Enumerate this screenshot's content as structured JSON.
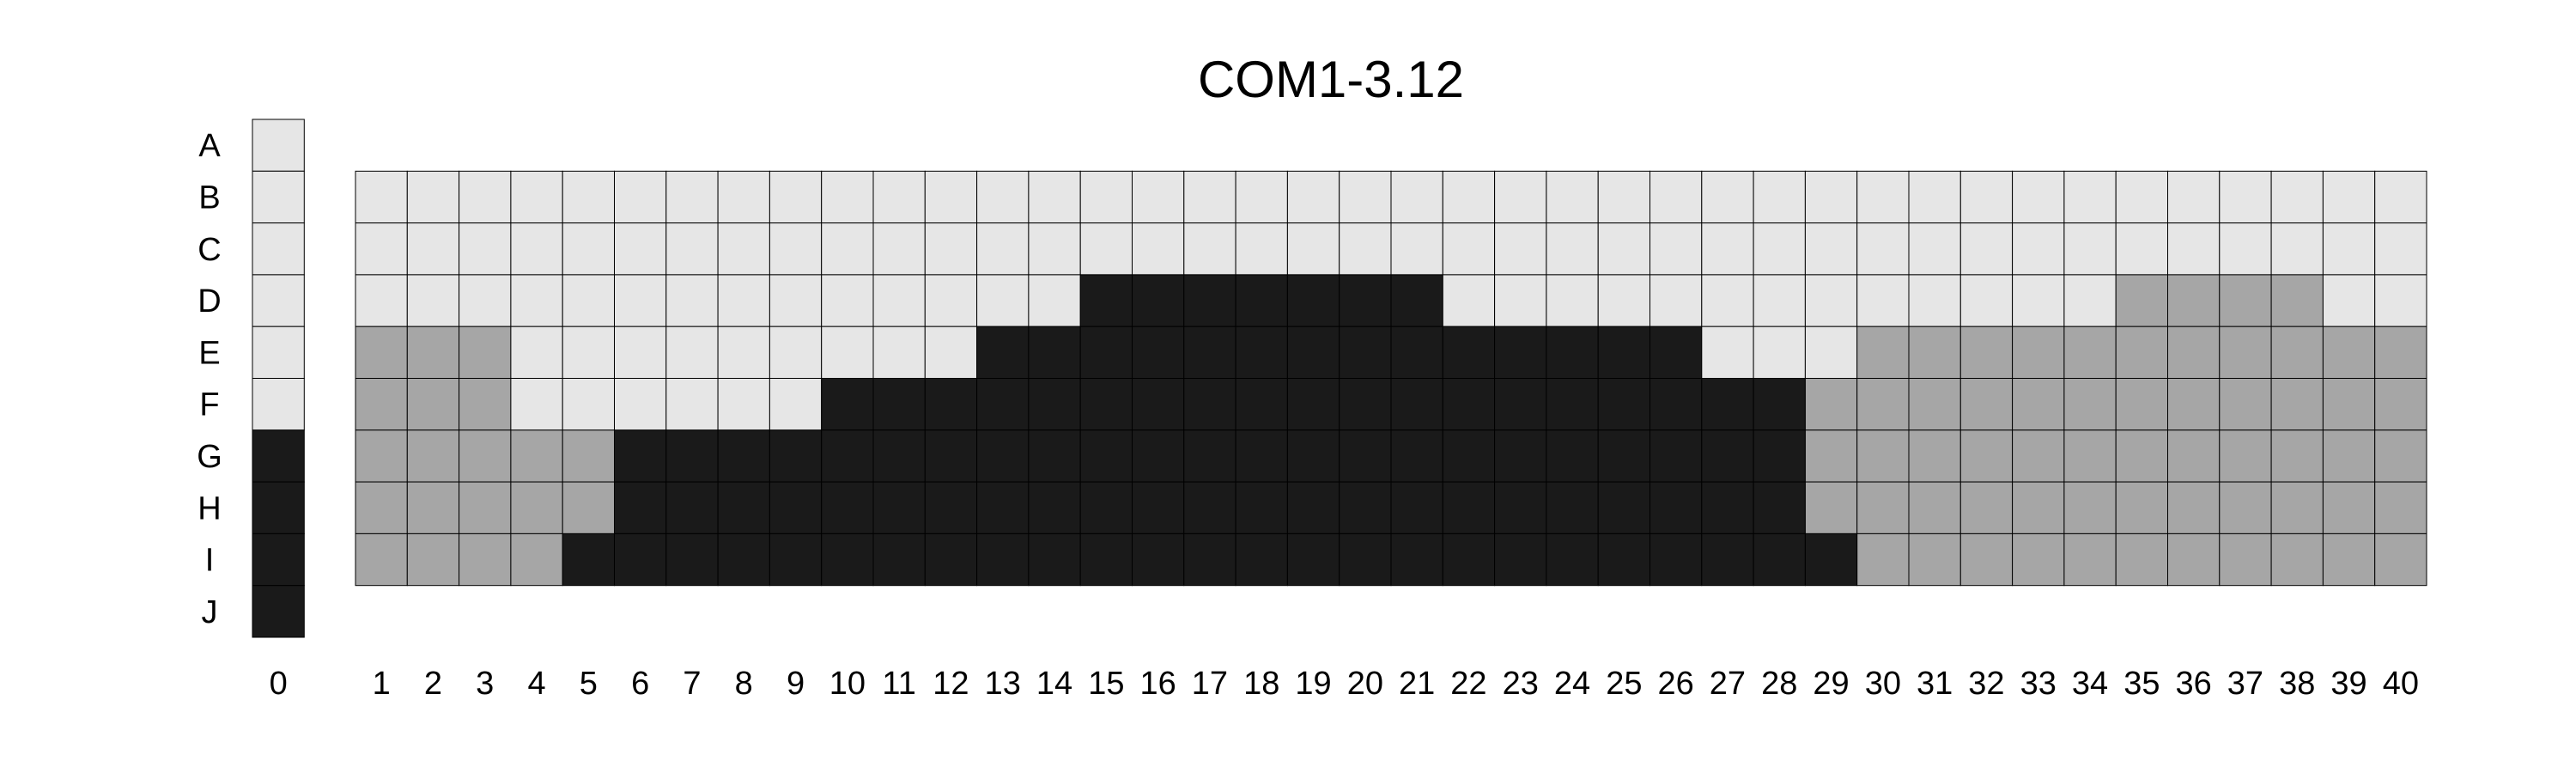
{
  "chart_data": {
    "type": "heatmap",
    "title": "COM1-3.12",
    "rows": [
      "A",
      "B",
      "C",
      "D",
      "E",
      "F",
      "G",
      "H",
      "I",
      "J"
    ],
    "columns": [
      "1",
      "2",
      "3",
      "4",
      "5",
      "6",
      "7",
      "8",
      "9",
      "10",
      "11",
      "12",
      "13",
      "14",
      "15",
      "16",
      "17",
      "18",
      "19",
      "20",
      "21",
      "22",
      "23",
      "24",
      "25",
      "26",
      "27",
      "28",
      "29",
      "30",
      "31",
      "32",
      "33",
      "34",
      "35",
      "36",
      "37",
      "38",
      "39",
      "40"
    ],
    "reference_column": {
      "label": "0",
      "values": [
        "light",
        "light",
        "light",
        "light",
        "light",
        "light",
        "dark",
        "dark",
        "dark",
        "dark"
      ]
    },
    "grid_rows": [
      "B",
      "C",
      "D",
      "E",
      "F",
      "G",
      "H",
      "I"
    ],
    "grid": [
      "LLLLLLLLLLLLLLLLLLLLLLLLLLLLLLLLLLLLLLLL",
      "LLLLLLLLLLLLLLLLLLLLLLLLLLLLLLLLLLLLLLLL",
      "LLLLLLLLLLLLLLDDDDDDDLLLLLLLLLLLLLMMMMLL",
      "MMMLLLLLLLLLDDDDDDDDDDDDDDLLLMMMMMMMMMMM",
      "MMMLLLLLLDDDDDDDDDDDDDDDDDDDMMMMMMMMMMMM",
      "MMMMMDDDDDDDDDDDDDDDDDDDDDDDMMMMMMMMMMMM",
      "MMMMMDDDDDDDDDDDDDDDDDDDDDDDMMMMMMMMMMMM",
      "MMMMDDDDDDDDDDDDDDDDDDDDDDDDDMMMMMMMMMMM"
    ],
    "legend": {
      "L": "light",
      "M": "medium",
      "D": "dark"
    },
    "colors": {
      "light": "#e6e6e6",
      "medium": "#a6a6a6",
      "dark": "#1a1a1a",
      "gridline": "#000000"
    }
  }
}
